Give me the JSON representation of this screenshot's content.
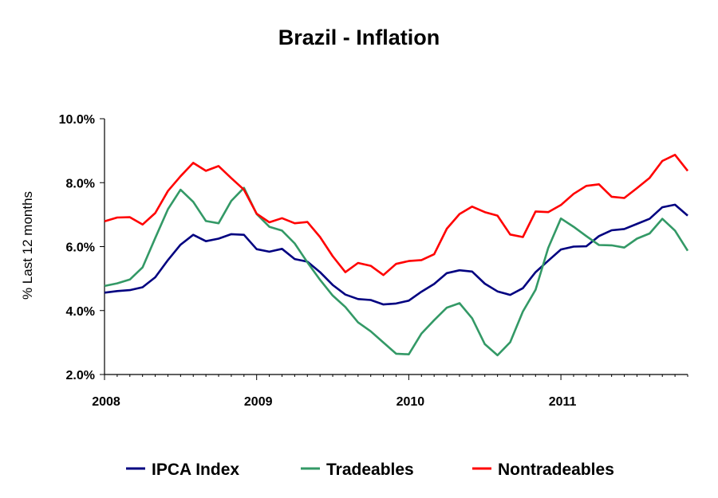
{
  "chart_data": {
    "type": "line",
    "title": "Brazil - Inflation",
    "ylabel": "% Last 12 months",
    "xlabel": "",
    "ylim": [
      2.0,
      10.0
    ],
    "yticks": [
      2.0,
      4.0,
      6.0,
      8.0,
      10.0
    ],
    "ytick_labels": [
      "2.0%",
      "4.0%",
      "6.0%",
      "8.0%",
      "10.0%"
    ],
    "xticks": [
      0,
      12,
      24,
      36
    ],
    "xtick_labels": [
      "2008",
      "2009",
      "2010",
      "2011"
    ],
    "xlim": [
      0,
      46
    ],
    "legend_position": "bottom",
    "x_label_note": "monthly observations, index 0 = Jan 2008",
    "series": [
      {
        "name": "IPCA Index",
        "color": "#000080",
        "values": [
          4.56,
          4.61,
          4.64,
          4.73,
          5.04,
          5.58,
          6.06,
          6.37,
          6.17,
          6.25,
          6.39,
          6.37,
          5.92,
          5.84,
          5.93,
          5.61,
          5.53,
          5.2,
          4.8,
          4.5,
          4.36,
          4.33,
          4.19,
          4.22,
          4.31,
          4.59,
          4.83,
          5.17,
          5.26,
          5.22,
          4.84,
          4.6,
          4.49,
          4.7,
          5.2,
          5.56,
          5.91,
          6.0,
          6.01,
          6.33,
          6.51,
          6.55,
          6.71,
          6.87,
          7.23,
          7.31,
          6.97
        ]
      },
      {
        "name": "Tradeables",
        "color": "#339966",
        "values": [
          4.77,
          4.85,
          4.97,
          5.35,
          6.27,
          7.17,
          7.78,
          7.4,
          6.8,
          6.73,
          7.43,
          7.84,
          7.02,
          6.62,
          6.5,
          6.1,
          5.51,
          4.96,
          4.47,
          4.11,
          3.63,
          3.35,
          3.0,
          2.65,
          2.63,
          3.28,
          3.7,
          4.09,
          4.23,
          3.76,
          2.95,
          2.6,
          3.01,
          3.97,
          4.65,
          5.96,
          6.88,
          6.62,
          6.33,
          6.05,
          6.04,
          5.97,
          6.25,
          6.41,
          6.87,
          6.5,
          5.87
        ]
      },
      {
        "name": "Nontradeables",
        "color": "#ff0000",
        "values": [
          6.79,
          6.91,
          6.92,
          6.69,
          7.05,
          7.74,
          8.2,
          8.62,
          8.37,
          8.52,
          8.14,
          7.78,
          7.03,
          6.76,
          6.89,
          6.73,
          6.77,
          6.3,
          5.7,
          5.2,
          5.49,
          5.4,
          5.11,
          5.46,
          5.55,
          5.58,
          5.76,
          6.56,
          7.02,
          7.25,
          7.08,
          6.97,
          6.38,
          6.3,
          7.1,
          7.08,
          7.3,
          7.65,
          7.9,
          7.95,
          7.56,
          7.52,
          7.83,
          8.15,
          8.68,
          8.87,
          8.37
        ]
      }
    ]
  }
}
